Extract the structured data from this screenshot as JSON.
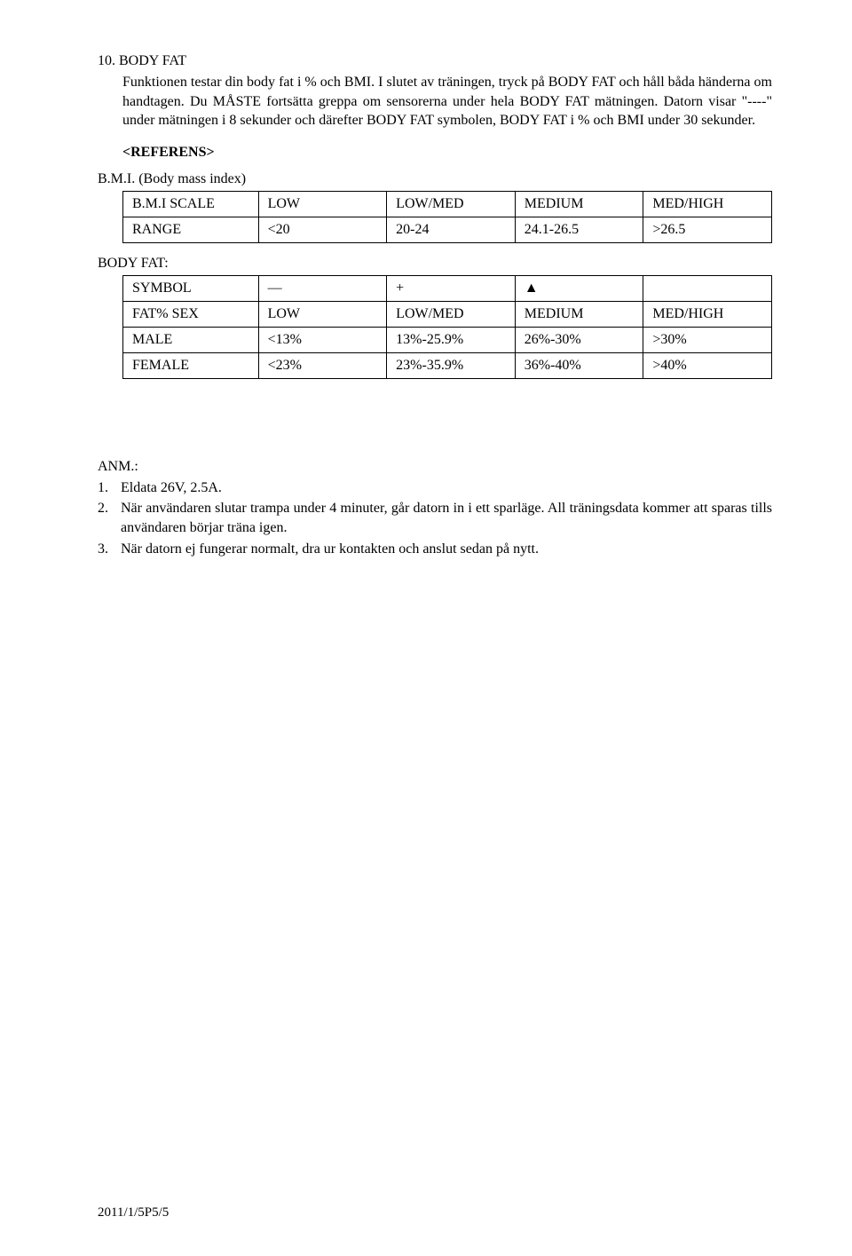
{
  "heading": "10. BODY FAT",
  "para1a": "Funktionen testar din body fat i % och BMI. I slutet av träningen, tryck på BODY FAT och håll båda händerna om handtagen. Du MÅSTE fortsätta greppa om sensorerna under hela BODY FAT mätningen. Datorn visar \"----\" under mätningen i 8 sekunder och därefter BODY FAT symbolen, BODY FAT i % och BMI under 30 sekunder.",
  "ref": "<REFERENS>",
  "bmiLabel": "B.M.I. (Body mass index)",
  "bmiTable": {
    "rows": [
      [
        "B.M.I SCALE",
        "LOW",
        "LOW/MED",
        "MEDIUM",
        "MED/HIGH"
      ],
      [
        "RANGE",
        "<20",
        "20-24",
        "24.1-26.5",
        ">26.5"
      ]
    ]
  },
  "bodyFatLabel": "BODY FAT:",
  "bodyFatTable": {
    "rows": [
      [
        "SYMBOL",
        "—",
        "+",
        "▲",
        ""
      ],
      [
        "FAT% SEX",
        "LOW",
        "LOW/MED",
        "MEDIUM",
        "MED/HIGH"
      ],
      [
        "MALE",
        "<13%",
        "13%-25.9%",
        "26%-30%",
        ">30%"
      ],
      [
        "FEMALE",
        "<23%",
        "23%-35.9%",
        "36%-40%",
        ">40%"
      ]
    ]
  },
  "anmHeading": "ANM.:",
  "notes": [
    {
      "num": "1.",
      "text": "Eldata 26V, 2.5A."
    },
    {
      "num": "2.",
      "text": "När användaren slutar trampa under 4 minuter, går datorn in i ett sparläge. All träningsdata kommer att sparas tills användaren börjar träna igen."
    },
    {
      "num": "3.",
      "text": "När datorn ej fungerar normalt, dra ur kontakten och anslut sedan på nytt."
    }
  ],
  "footer": "2011/1/5P5/5"
}
